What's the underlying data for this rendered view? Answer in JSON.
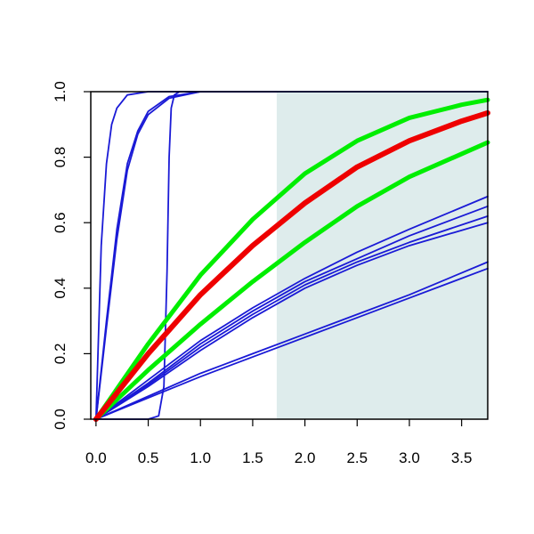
{
  "chart_data": {
    "type": "line",
    "title": "",
    "xlabel": "",
    "ylabel": "",
    "xlim": [
      -0.05,
      3.75
    ],
    "ylim": [
      0,
      1
    ],
    "x_ticks": [
      "0.0",
      "0.5",
      "1.0",
      "1.5",
      "2.0",
      "2.5",
      "3.0",
      "3.5"
    ],
    "y_ticks": [
      "0.0",
      "0.2",
      "0.4",
      "0.6",
      "0.8",
      "1.0"
    ],
    "grid": false,
    "shaded_region": {
      "x_from": 1.73,
      "x_to": 3.75,
      "color": "#deecec"
    },
    "colors": {
      "blue": "#1a1ad6",
      "green": "#00ee00",
      "red": "#ee0000"
    },
    "series": [
      {
        "color": "blue",
        "x": [
          0,
          0.05,
          0.1,
          0.15,
          0.2,
          0.3,
          0.5,
          0.8,
          1.73
        ],
        "values": [
          0,
          0.53,
          0.78,
          0.9,
          0.95,
          0.99,
          1.0,
          1.0,
          1.0
        ]
      },
      {
        "color": "blue",
        "x": [
          0,
          0.1,
          0.2,
          0.3,
          0.4,
          0.5,
          0.7,
          1.0,
          1.73
        ],
        "values": [
          0,
          0.3,
          0.58,
          0.78,
          0.88,
          0.94,
          0.985,
          1.0,
          1.0
        ]
      },
      {
        "color": "blue",
        "x": [
          0,
          0.1,
          0.2,
          0.3,
          0.4,
          0.5,
          0.7,
          1.0,
          1.73
        ],
        "values": [
          0,
          0.28,
          0.55,
          0.76,
          0.87,
          0.93,
          0.98,
          1.0,
          1.0
        ]
      },
      {
        "color": "blue",
        "x": [
          0,
          0.5,
          0.6,
          0.65,
          0.68,
          0.7,
          0.72,
          0.75,
          0.8,
          1.0,
          3.75
        ],
        "values": [
          0,
          0,
          0.01,
          0.1,
          0.45,
          0.8,
          0.95,
          0.99,
          1.0,
          1.0,
          1.0
        ]
      },
      {
        "color": "blue",
        "x": [
          0,
          0.5,
          1.0,
          1.5,
          2.0,
          2.5,
          3.0,
          3.75
        ],
        "values": [
          0,
          0.12,
          0.24,
          0.34,
          0.43,
          0.51,
          0.58,
          0.68
        ]
      },
      {
        "color": "blue",
        "x": [
          0,
          0.5,
          1.0,
          1.5,
          2.0,
          2.5,
          3.0,
          3.75
        ],
        "values": [
          0,
          0.11,
          0.23,
          0.33,
          0.42,
          0.49,
          0.56,
          0.65
        ]
      },
      {
        "color": "blue",
        "x": [
          0,
          0.5,
          1.0,
          1.5,
          2.0,
          2.5,
          3.0,
          3.75
        ],
        "values": [
          0,
          0.105,
          0.22,
          0.32,
          0.41,
          0.48,
          0.54,
          0.62
        ]
      },
      {
        "color": "blue",
        "x": [
          0,
          0.5,
          1.0,
          1.5,
          2.0,
          2.5,
          3.0,
          3.75
        ],
        "values": [
          0,
          0.1,
          0.21,
          0.31,
          0.4,
          0.47,
          0.53,
          0.6
        ]
      },
      {
        "color": "blue",
        "x": [
          0,
          0.5,
          1.0,
          1.5,
          2.0,
          2.5,
          3.0,
          3.75
        ],
        "values": [
          0,
          0.07,
          0.14,
          0.2,
          0.26,
          0.32,
          0.38,
          0.48
        ]
      },
      {
        "color": "blue",
        "x": [
          0,
          0.5,
          1.0,
          1.5,
          2.0,
          2.5,
          3.0,
          3.75
        ],
        "values": [
          0,
          0.065,
          0.13,
          0.19,
          0.25,
          0.31,
          0.37,
          0.46
        ]
      },
      {
        "color": "green",
        "x": [
          0,
          0.5,
          1.0,
          1.5,
          2.0,
          2.5,
          3.0,
          3.5,
          3.75
        ],
        "values": [
          0,
          0.23,
          0.44,
          0.61,
          0.75,
          0.85,
          0.92,
          0.96,
          0.975
        ]
      },
      {
        "color": "green",
        "x": [
          0,
          0.5,
          1.0,
          1.5,
          2.0,
          2.5,
          3.0,
          3.5,
          3.75
        ],
        "values": [
          0,
          0.15,
          0.29,
          0.42,
          0.54,
          0.65,
          0.74,
          0.81,
          0.845
        ]
      },
      {
        "color": "red",
        "x": [
          0,
          0.5,
          1.0,
          1.5,
          2.0,
          2.5,
          3.0,
          3.5,
          3.75
        ],
        "values": [
          0,
          0.2,
          0.38,
          0.53,
          0.66,
          0.77,
          0.85,
          0.91,
          0.935
        ]
      }
    ]
  }
}
